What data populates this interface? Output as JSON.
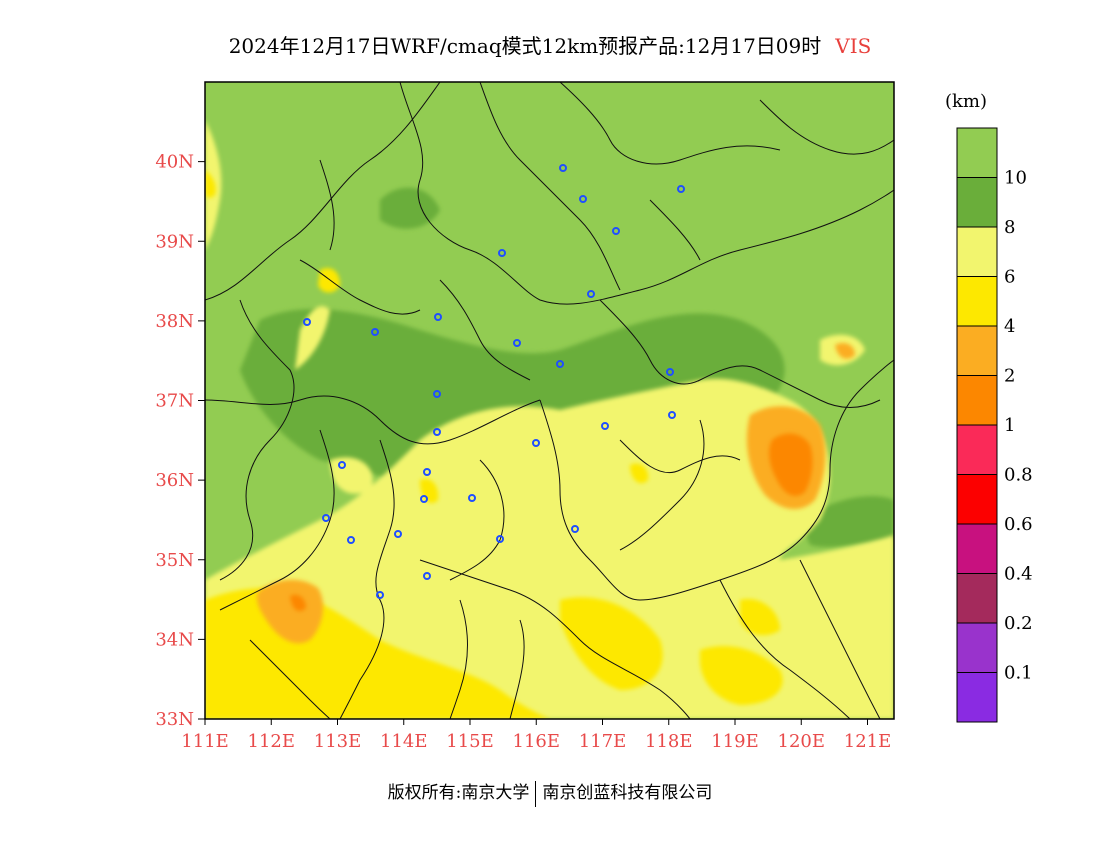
{
  "title": {
    "main": "2024年12月17日WRF/cmaq模式12km预报产品:12月17日09时",
    "variable": "VIS"
  },
  "map": {
    "lat_labels": [
      "40N",
      "39N",
      "38N",
      "37N",
      "36N",
      "35N",
      "34N",
      "33N"
    ],
    "lon_labels": [
      "111E",
      "112E",
      "113E",
      "114E",
      "115E",
      "116E",
      "117E",
      "118E",
      "119E",
      "120E",
      "121E"
    ],
    "lat_range": [
      33,
      41
    ],
    "lon_range": [
      111,
      121.4
    ]
  },
  "colorbar": {
    "unit": "(km)",
    "levels": [
      "10",
      "8",
      "6",
      "4",
      "2",
      "1",
      "0.8",
      "0.6",
      "0.4",
      "0.2",
      "0.1"
    ],
    "colors": [
      "#92cc52",
      "#6aae3a",
      "#f2f56e",
      "#fde800",
      "#fbad22",
      "#fc8700",
      "#fa2a58",
      "#fc0000",
      "#c8117f",
      "#a42a5c",
      "#9933cc",
      "#8a2be2"
    ]
  },
  "copyright": {
    "left": "版权所有:南京大学",
    "right": "南京创蓝科技有限公司"
  }
}
